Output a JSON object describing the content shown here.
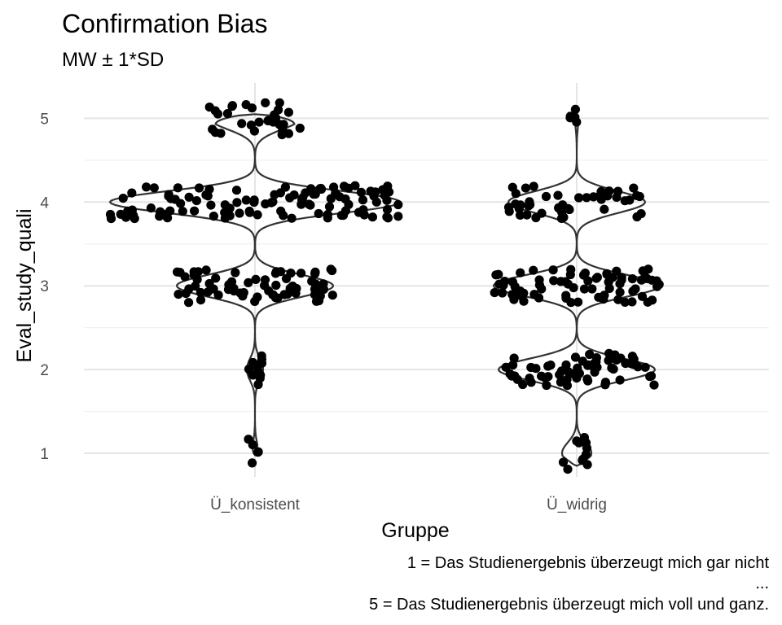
{
  "chart_data": {
    "type": "violin",
    "title": "Confirmation Bias",
    "subtitle": "MW ± 1*SD",
    "xlabel": "Gruppe",
    "ylabel": "Eval_study_quali",
    "ylim": [
      0.75,
      5.4
    ],
    "yticks": [
      1,
      2,
      3,
      4,
      5
    ],
    "categories": [
      "Ü_konsistent",
      "Ü_widrig"
    ],
    "grid": true,
    "caption": [
      "1 = Das Studienergebnis überzeugt mich gar nicht",
      "...",
      "5 = Das Studienergebnis überzeugt mich voll und ganz."
    ],
    "distributions": [
      {
        "group": "Ü_konsistent",
        "counts": {
          "1": 5,
          "2": 12,
          "3": 70,
          "4": 110,
          "5": 30
        }
      },
      {
        "group": "Ü_widrig",
        "counts": {
          "1": 12,
          "2": 65,
          "3": 75,
          "4": 45,
          "5": 5
        }
      }
    ],
    "violin_half_width": [
      {
        "group": "Ü_konsistent",
        "levels": {
          "1": 0.02,
          "2": 0.05,
          "3": 0.48,
          "4": 0.89,
          "5": 0.28
        }
      },
      {
        "group": "Ü_widrig",
        "levels": {
          "1": 0.09,
          "2": 0.48,
          "3": 0.51,
          "4": 0.42,
          "5": 0.01
        }
      }
    ]
  }
}
